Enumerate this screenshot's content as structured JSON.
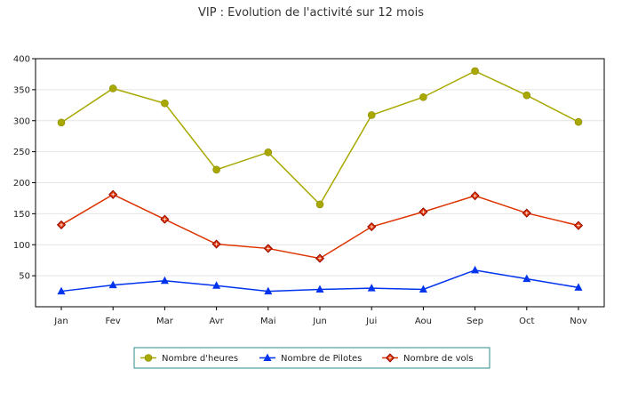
{
  "chart_data": {
    "type": "line",
    "title": "VIP : Evolution de l'activité sur 12 mois",
    "xlabel": "",
    "ylabel": "",
    "categories": [
      "Jan",
      "Fev",
      "Mar",
      "Avr",
      "Mai",
      "Jun",
      "Jui",
      "Aou",
      "Sep",
      "Oct",
      "Nov"
    ],
    "ylim": [
      0,
      400
    ],
    "yticks": [
      50,
      100,
      150,
      200,
      250,
      300,
      350,
      400
    ],
    "grid": true,
    "legend_position": "bottom",
    "series": [
      {
        "name": "Nombre d'heures",
        "color": "#a8a800",
        "marker": "circle",
        "values": [
          297,
          352,
          328,
          221,
          249,
          165,
          309,
          338,
          380,
          341,
          298
        ]
      },
      {
        "name": "Nombre de Pilotes",
        "color": "#0033ee",
        "marker": "triangle",
        "values": [
          25,
          35,
          42,
          34,
          25,
          28,
          30,
          28,
          59,
          45,
          31
        ]
      },
      {
        "name": "Nombre de vols",
        "color": "#dd3300",
        "marker": "diamond",
        "values": [
          132,
          181,
          141,
          101,
          94,
          78,
          129,
          153,
          179,
          151,
          131
        ]
      }
    ]
  }
}
